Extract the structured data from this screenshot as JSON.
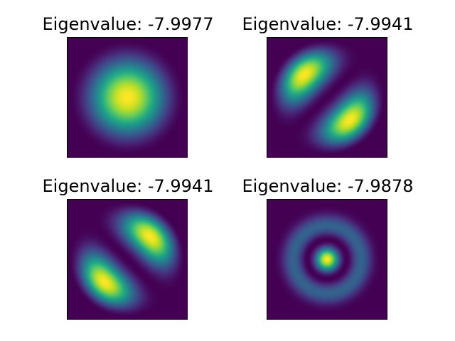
{
  "chart_data": [
    {
      "type": "heatmap",
      "title": "Eigenvalue: -7.9977",
      "mode": "radial_1",
      "colormap": "viridis",
      "xticks": [],
      "yticks": []
    },
    {
      "type": "heatmap",
      "title": "Eigenvalue: -7.9941",
      "mode": "dipole_antidiagonal",
      "colormap": "viridis",
      "xticks": [],
      "yticks": []
    },
    {
      "type": "heatmap",
      "title": "Eigenvalue: -7.9941",
      "mode": "dipole_diagonal",
      "colormap": "viridis",
      "xticks": [],
      "yticks": []
    },
    {
      "type": "heatmap",
      "title": "Eigenvalue: -7.9878",
      "mode": "radial_2",
      "colormap": "viridis",
      "xticks": [],
      "yticks": []
    }
  ],
  "colors": {
    "background": "#ffffff",
    "colormap_low": "#440154",
    "colormap_high": "#fde725"
  }
}
